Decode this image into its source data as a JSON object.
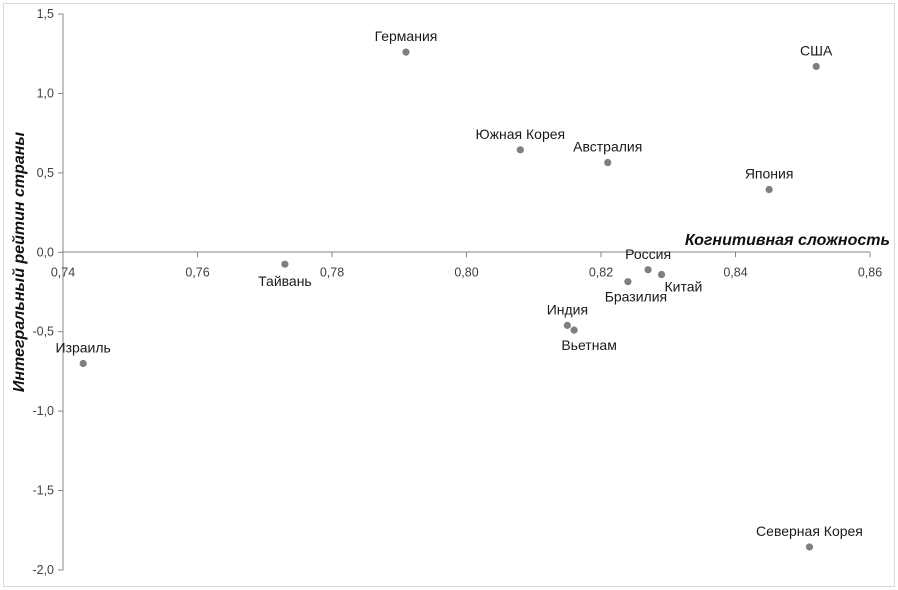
{
  "chart_data": {
    "type": "scatter",
    "title": "",
    "xlabel": "Когнитивная сложность",
    "ylabel": "Интегральный рейтин страны",
    "xlim": [
      0.74,
      0.86
    ],
    "ylim": [
      -2.0,
      1.5
    ],
    "x_ticks": [
      "0,74",
      "0,76",
      "0,78",
      "0,80",
      "0,82",
      "0,84",
      "0,86"
    ],
    "y_ticks": [
      "1,5",
      "1,0",
      "0,5",
      "0,0",
      "-0,5",
      "-1,0",
      "-1,5",
      "-2,0"
    ],
    "x_tick_values": [
      0.74,
      0.76,
      0.78,
      0.8,
      0.82,
      0.84,
      0.86
    ],
    "y_tick_values": [
      1.5,
      1.0,
      0.5,
      0.0,
      -0.5,
      -1.0,
      -1.5,
      -2.0
    ],
    "marker_color": "#7f7f7f",
    "points": [
      {
        "label": "Германия",
        "x": 0.791,
        "y": 1.26,
        "pos": "above"
      },
      {
        "label": "США",
        "x": 0.852,
        "y": 1.17,
        "pos": "above"
      },
      {
        "label": "Южная Корея",
        "x": 0.808,
        "y": 0.645,
        "pos": "above"
      },
      {
        "label": "Австралия",
        "x": 0.821,
        "y": 0.565,
        "pos": "above"
      },
      {
        "label": "Япония",
        "x": 0.845,
        "y": 0.395,
        "pos": "above"
      },
      {
        "label": "Тайвань",
        "x": 0.773,
        "y": -0.075,
        "pos": "below"
      },
      {
        "label": "Россия",
        "x": 0.827,
        "y": -0.11,
        "pos": "above"
      },
      {
        "label": "Китай",
        "x": 0.829,
        "y": -0.14,
        "pos": "below-right"
      },
      {
        "label": "Бразилия",
        "x": 0.824,
        "y": -0.185,
        "pos": "below-far"
      },
      {
        "label": "Индия",
        "x": 0.815,
        "y": -0.46,
        "pos": "above"
      },
      {
        "label": "Вьетнам",
        "x": 0.816,
        "y": -0.49,
        "pos": "below-far"
      },
      {
        "label": "Израиль",
        "x": 0.743,
        "y": -0.7,
        "pos": "above"
      },
      {
        "label": "Северная Корея",
        "x": 0.851,
        "y": -1.855,
        "pos": "above"
      }
    ]
  }
}
